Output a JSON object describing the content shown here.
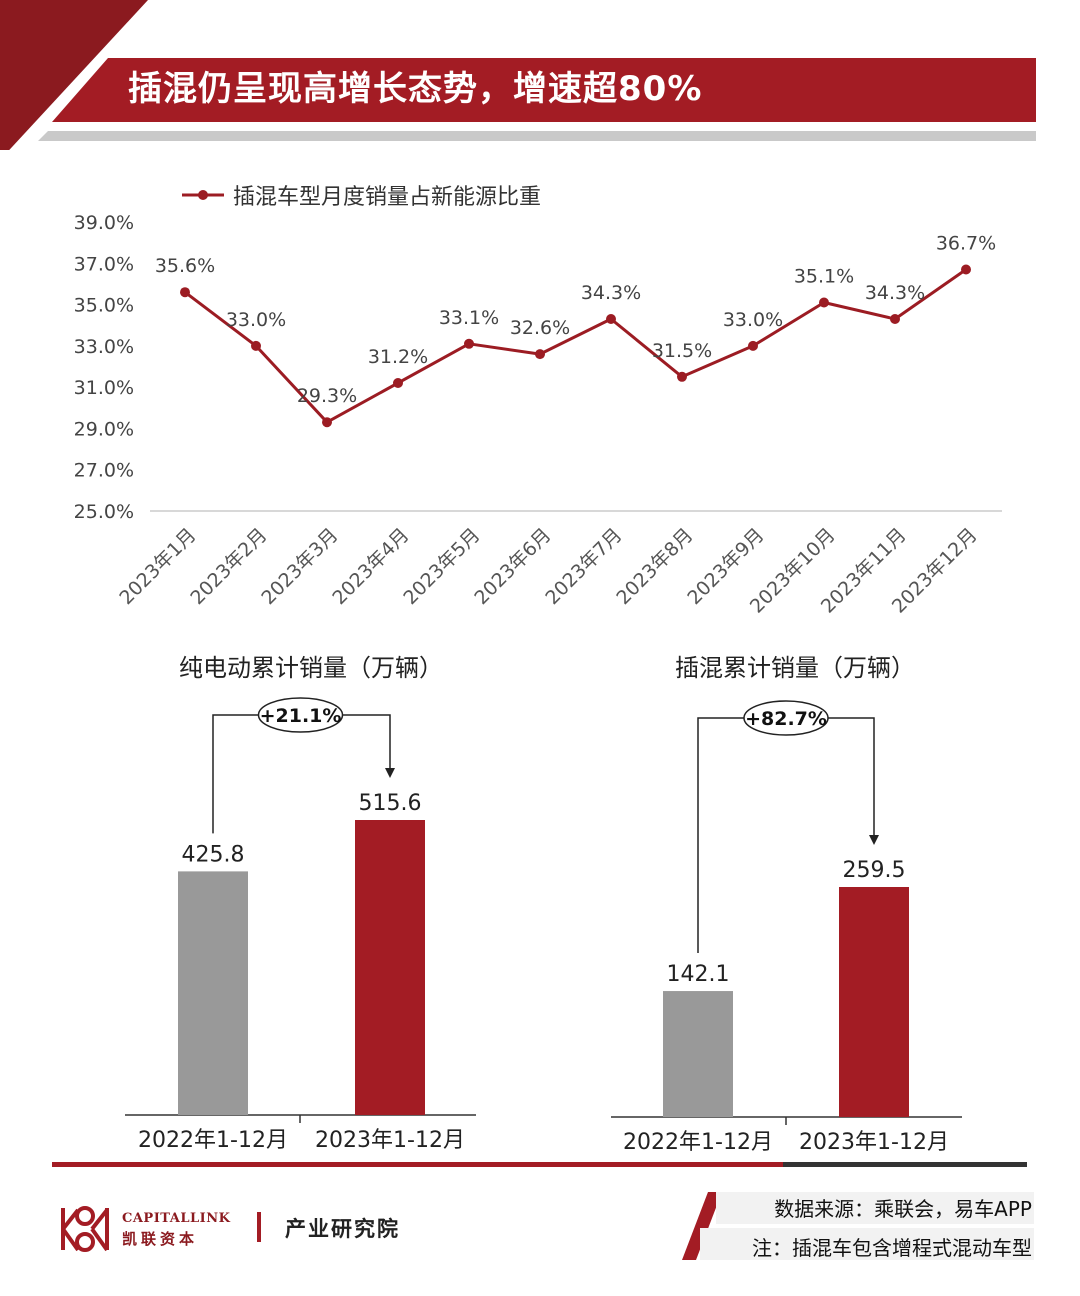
{
  "header": {
    "title": "插混仍呈现高增长态势，增速超80%"
  },
  "colors": {
    "primary": "#a31c24",
    "dark_red": "#8b1a1f",
    "gray_bar": "#999999",
    "line": "#9c1c23"
  },
  "chart_data": [
    {
      "type": "line",
      "series": [
        {
          "name": "插混车型月度销量占新能源比重",
          "values": [
            35.6,
            33.0,
            29.3,
            31.2,
            33.1,
            32.6,
            34.3,
            31.5,
            33.0,
            35.1,
            34.3,
            36.7
          ]
        }
      ],
      "categories": [
        "2023年1月",
        "2023年2月",
        "2023年3月",
        "2023年4月",
        "2023年5月",
        "2023年6月",
        "2023年7月",
        "2023年8月",
        "2023年9月",
        "2023年10月",
        "2023年11月",
        "2023年12月"
      ],
      "data_labels": [
        "35.6%",
        "33.0%",
        "29.3%",
        "31.2%",
        "33.1%",
        "32.6%",
        "34.3%",
        "31.5%",
        "33.0%",
        "35.1%",
        "34.3%",
        "36.7%"
      ],
      "yticks": [
        "25.0%",
        "27.0%",
        "29.0%",
        "31.0%",
        "33.0%",
        "35.0%",
        "37.0%",
        "39.0%"
      ],
      "ylim": [
        25,
        39
      ],
      "legend": "top-left",
      "grid": false
    },
    {
      "type": "bar",
      "title": "纯电动累计销量（万辆）",
      "categories": [
        "2022年1-12月",
        "2023年1-12月"
      ],
      "values": [
        425.8,
        515.6
      ],
      "data_labels": [
        "425.8",
        "515.6"
      ],
      "growth_label": "+21.1%"
    },
    {
      "type": "bar",
      "title": "插混累计销量（万辆）",
      "categories": [
        "2022年1-12月",
        "2023年1-12月"
      ],
      "values": [
        142.1,
        259.5
      ],
      "data_labels": [
        "142.1",
        "259.5"
      ],
      "growth_label": "+82.7%"
    }
  ],
  "footer": {
    "logo_en": "CAPITALLINK",
    "logo_cn": "凯联资本",
    "institute": "产业研究院",
    "source": "数据来源：乘联会，易车APP",
    "note": "注：插混车包含增程式混动车型"
  }
}
